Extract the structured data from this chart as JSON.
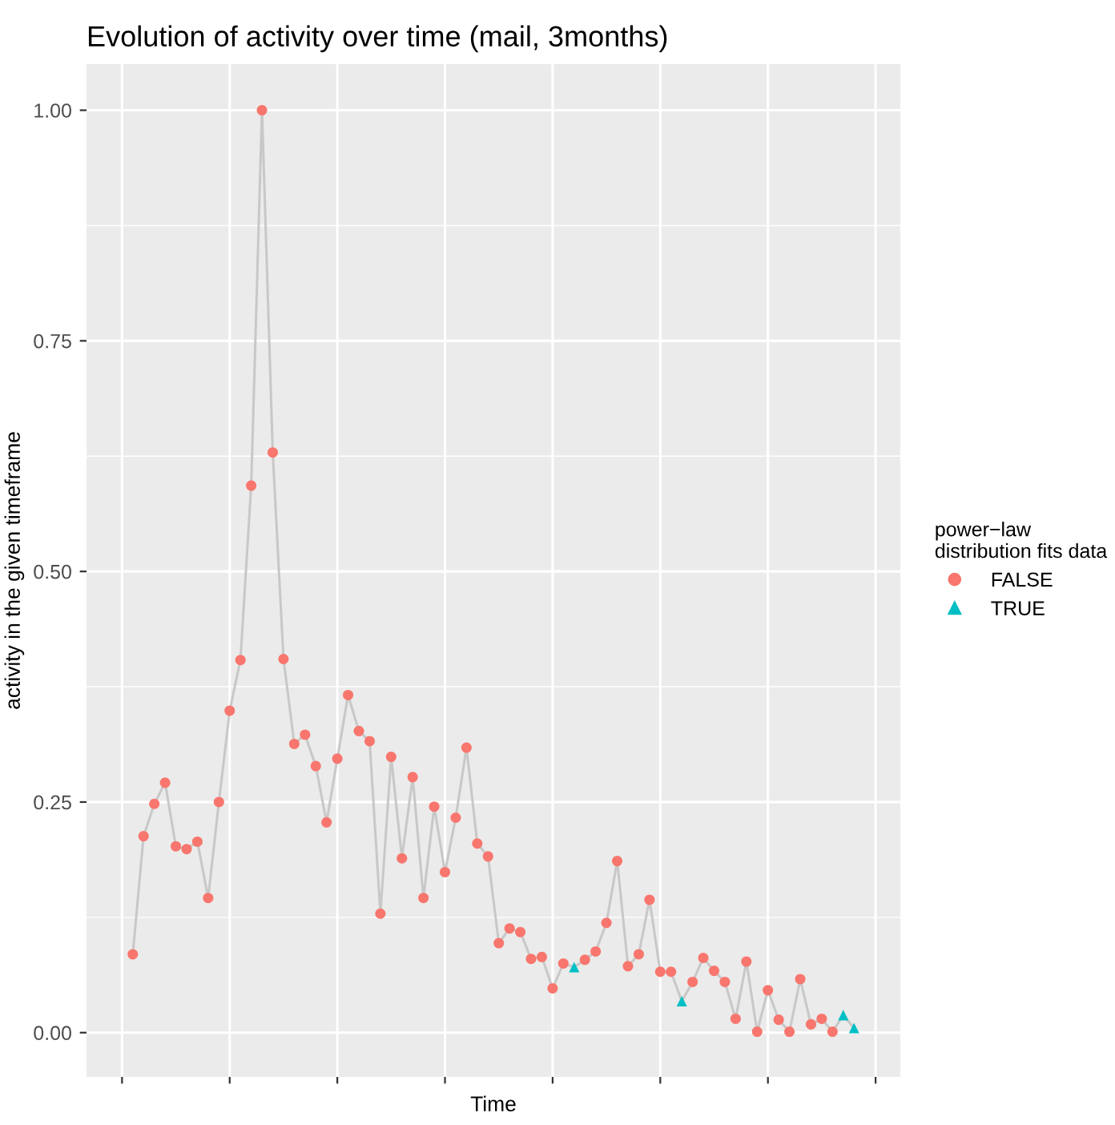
{
  "chart_data": {
    "type": "line",
    "title": "Evolution of activity over time (mail, 3months)",
    "xlabel": "Time",
    "ylabel": "activity in the given timeframe",
    "legend_title": "power−law\ndistribution fits data",
    "categories": [
      null,
      null,
      null,
      null,
      null,
      null,
      null,
      null,
      null,
      null,
      null,
      null,
      null,
      null,
      null,
      null,
      null,
      null,
      null,
      null,
      null,
      null,
      null,
      null,
      null,
      null,
      null,
      null,
      null,
      null,
      null,
      null,
      null,
      null,
      null,
      null,
      null,
      null,
      null,
      null,
      null,
      null,
      null,
      null,
      null,
      null,
      null,
      null,
      null,
      null,
      null,
      null,
      null,
      null,
      null,
      null,
      null,
      null,
      null,
      null,
      null,
      null,
      null,
      null,
      null,
      null,
      null,
      null
    ],
    "series": [
      {
        "color": "#c8c8c8",
        "marker": "none",
        "values": [
          0.085,
          0.213,
          0.248,
          0.271,
          0.202,
          0.199,
          0.207,
          0.146,
          0.25,
          0.349,
          0.404,
          0.593,
          1.0,
          0.629,
          0.405,
          0.313,
          0.323,
          0.289,
          0.228,
          0.297,
          0.366,
          0.327,
          0.316,
          0.129,
          0.299,
          0.189,
          0.277,
          0.146,
          0.245,
          0.174,
          0.233,
          0.309,
          0.205,
          0.191,
          0.097,
          0.113,
          0.109,
          0.08,
          0.082,
          0.048,
          0.075,
          0.071,
          0.079,
          0.088,
          0.119,
          0.186,
          0.072,
          0.085,
          0.144,
          0.066,
          0.066,
          0.034,
          0.055,
          0.081,
          0.067,
          0.055,
          0.015,
          0.077,
          0.001,
          0.046,
          0.014,
          0.001,
          0.058,
          0.009,
          0.015,
          0.001,
          0.019,
          0.005
        ]
      },
      {
        "type": "scatter",
        "name": "FALSE",
        "color": "#f8766d",
        "marker": "circle",
        "values": [
          0.085,
          0.213,
          0.248,
          0.271,
          0.202,
          0.199,
          0.207,
          0.146,
          0.25,
          0.349,
          0.404,
          0.593,
          1.0,
          0.629,
          0.405,
          0.313,
          0.323,
          0.289,
          0.228,
          0.297,
          0.366,
          0.327,
          0.316,
          0.129,
          0.299,
          0.189,
          0.277,
          0.146,
          0.245,
          0.174,
          0.233,
          0.309,
          0.205,
          0.191,
          0.097,
          0.113,
          0.109,
          0.08,
          0.082,
          0.048,
          0.075,
          null,
          0.079,
          0.088,
          0.119,
          0.186,
          0.072,
          0.085,
          0.144,
          0.066,
          0.066,
          null,
          0.055,
          0.081,
          0.067,
          0.055,
          0.015,
          0.077,
          0.001,
          0.046,
          0.014,
          0.001,
          0.058,
          0.009,
          0.015,
          0.001,
          null,
          null
        ]
      },
      {
        "type": "scatter",
        "name": "TRUE",
        "color": "#00bfc4",
        "marker": "triangle",
        "values": [
          null,
          null,
          null,
          null,
          null,
          null,
          null,
          null,
          null,
          null,
          null,
          null,
          null,
          null,
          null,
          null,
          null,
          null,
          null,
          null,
          null,
          null,
          null,
          null,
          null,
          null,
          null,
          null,
          null,
          null,
          null,
          null,
          null,
          null,
          null,
          null,
          null,
          null,
          null,
          null,
          null,
          0.071,
          null,
          null,
          null,
          null,
          null,
          null,
          null,
          null,
          null,
          0.034,
          null,
          null,
          null,
          null,
          null,
          null,
          null,
          null,
          null,
          null,
          null,
          null,
          null,
          null,
          0.019,
          0.005
        ]
      }
    ],
    "ylim": [
      -0.048,
      1.05
    ],
    "yticks": [
      {
        "value": 0,
        "label": "0.00"
      },
      {
        "value": 0.25,
        "label": "0.25"
      },
      {
        "value": 0.5,
        "label": "0.50"
      },
      {
        "value": 0.75,
        "label": "0.75"
      },
      {
        "value": 1,
        "label": "1.00"
      }
    ],
    "grid": true,
    "legend": "right"
  }
}
